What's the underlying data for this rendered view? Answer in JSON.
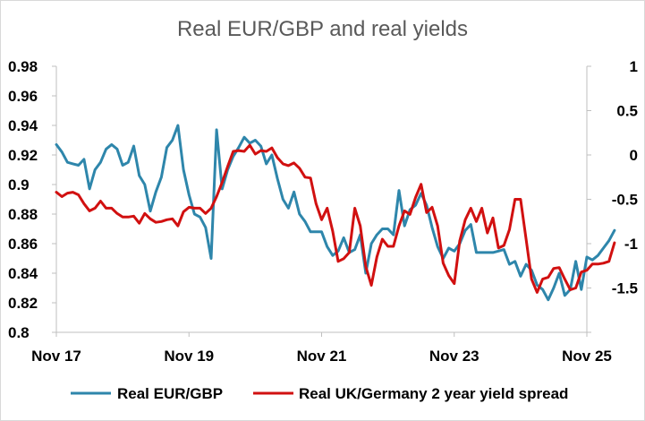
{
  "chart_data": {
    "type": "line",
    "title": "Real EUR/GBP and real yields",
    "grid": false,
    "legend_position": "bottom",
    "x_tick_labels": [
      "Nov 17",
      "Nov 19",
      "Nov 21",
      "Nov 23",
      "Nov 25"
    ],
    "x_range": [
      "2017-11",
      "2025-11"
    ],
    "y_left": {
      "range": [
        0.8,
        0.98
      ],
      "ticks": [
        0.8,
        0.82,
        0.84,
        0.86,
        0.88,
        0.9,
        0.92,
        0.94,
        0.96,
        0.98
      ],
      "tick_labels": [
        "0.8",
        "0.82",
        "0.84",
        "0.86",
        "0.88",
        "0.9",
        "0.92",
        "0.94",
        "0.96",
        "0.98"
      ]
    },
    "y_right": {
      "range": [
        -2,
        1
      ],
      "ticks": [
        -2,
        -1.5,
        -1,
        -0.5,
        0,
        0.5,
        1
      ],
      "tick_labels": [
        "",
        "-1.5",
        "-1",
        "-0.5",
        "0",
        "0.5",
        "1"
      ]
    },
    "series": [
      {
        "name": "Real EUR/GBP",
        "axis": "left",
        "color": "#2e86ab",
        "points": [
          [
            "2017-11",
            0.927
          ],
          [
            "2017-12",
            0.922
          ],
          [
            "2018-01",
            0.915
          ],
          [
            "2018-02",
            0.914
          ],
          [
            "2018-03",
            0.913
          ],
          [
            "2018-04",
            0.917
          ],
          [
            "2018-05",
            0.897
          ],
          [
            "2018-06",
            0.91
          ],
          [
            "2018-07",
            0.915
          ],
          [
            "2018-08",
            0.924
          ],
          [
            "2018-09",
            0.927
          ],
          [
            "2018-10",
            0.924
          ],
          [
            "2018-11",
            0.913
          ],
          [
            "2018-12",
            0.915
          ],
          [
            "2019-01",
            0.926
          ],
          [
            "2019-02",
            0.906
          ],
          [
            "2019-03",
            0.9
          ],
          [
            "2019-04",
            0.882
          ],
          [
            "2019-05",
            0.895
          ],
          [
            "2019-06",
            0.905
          ],
          [
            "2019-07",
            0.925
          ],
          [
            "2019-08",
            0.93
          ],
          [
            "2019-09",
            0.94
          ],
          [
            "2019-10",
            0.91
          ],
          [
            "2019-11",
            0.893
          ],
          [
            "2019-12",
            0.88
          ],
          [
            "2020-01",
            0.878
          ],
          [
            "2020-02",
            0.871
          ],
          [
            "2020-03",
            0.85
          ],
          [
            "2020-04",
            0.937
          ],
          [
            "2020-05",
            0.897
          ],
          [
            "2020-06",
            0.91
          ],
          [
            "2020-07",
            0.919
          ],
          [
            "2020-08",
            0.925
          ],
          [
            "2020-09",
            0.932
          ],
          [
            "2020-10",
            0.928
          ],
          [
            "2020-11",
            0.93
          ],
          [
            "2020-12",
            0.926
          ],
          [
            "2021-01",
            0.914
          ],
          [
            "2021-02",
            0.92
          ],
          [
            "2021-03",
            0.904
          ],
          [
            "2021-04",
            0.89
          ],
          [
            "2021-05",
            0.884
          ],
          [
            "2021-06",
            0.895
          ],
          [
            "2021-07",
            0.88
          ],
          [
            "2021-08",
            0.875
          ],
          [
            "2021-09",
            0.868
          ],
          [
            "2021-10",
            0.868
          ],
          [
            "2021-11",
            0.868
          ],
          [
            "2021-12",
            0.858
          ],
          [
            "2022-01",
            0.852
          ],
          [
            "2022-02",
            0.855
          ],
          [
            "2022-03",
            0.864
          ],
          [
            "2022-04",
            0.854
          ],
          [
            "2022-05",
            0.856
          ],
          [
            "2022-06",
            0.866
          ],
          [
            "2022-07",
            0.84
          ],
          [
            "2022-08",
            0.86
          ],
          [
            "2022-09",
            0.866
          ],
          [
            "2022-10",
            0.87
          ],
          [
            "2022-11",
            0.87
          ],
          [
            "2022-12",
            0.866
          ],
          [
            "2023-01",
            0.896
          ],
          [
            "2023-02",
            0.872
          ],
          [
            "2023-03",
            0.883
          ],
          [
            "2023-04",
            0.886
          ],
          [
            "2023-05",
            0.894
          ],
          [
            "2023-06",
            0.886
          ],
          [
            "2023-07",
            0.871
          ],
          [
            "2023-08",
            0.858
          ],
          [
            "2023-09",
            0.85
          ],
          [
            "2023-10",
            0.857
          ],
          [
            "2023-11",
            0.855
          ],
          [
            "2023-12",
            0.86
          ],
          [
            "2024-01",
            0.869
          ],
          [
            "2024-02",
            0.873
          ],
          [
            "2024-03",
            0.854
          ],
          [
            "2024-04",
            0.854
          ],
          [
            "2024-05",
            0.854
          ],
          [
            "2024-06",
            0.854
          ],
          [
            "2024-07",
            0.855
          ],
          [
            "2024-08",
            0.856
          ],
          [
            "2024-09",
            0.846
          ],
          [
            "2024-10",
            0.848
          ],
          [
            "2024-11",
            0.838
          ],
          [
            "2024-12",
            0.846
          ],
          [
            "2025-01",
            0.842
          ],
          [
            "2025-02",
            0.832
          ],
          [
            "2025-03",
            0.829
          ],
          [
            "2025-04",
            0.822
          ],
          [
            "2025-05",
            0.83
          ],
          [
            "2025-06",
            0.84
          ],
          [
            "2025-07",
            0.825
          ],
          [
            "2025-08",
            0.829
          ],
          [
            "2025-09",
            0.848
          ],
          [
            "2025-10",
            0.829
          ],
          [
            "2025-11",
            0.851
          ],
          [
            "2025-12",
            0.849
          ],
          [
            "2026-01",
            0.852
          ],
          [
            "2026-02",
            0.857
          ],
          [
            "2026-03",
            0.862
          ],
          [
            "2026-04",
            0.869
          ]
        ]
      },
      {
        "name": "Real UK/Germany 2 year yield spread",
        "axis": "right",
        "color": "#d11010",
        "points": [
          [
            "2017-11",
            -0.42
          ],
          [
            "2017-12",
            -0.47
          ],
          [
            "2018-01",
            -0.43
          ],
          [
            "2018-02",
            -0.42
          ],
          [
            "2018-03",
            -0.45
          ],
          [
            "2018-04",
            -0.55
          ],
          [
            "2018-05",
            -0.63
          ],
          [
            "2018-06",
            -0.6
          ],
          [
            "2018-07",
            -0.52
          ],
          [
            "2018-08",
            -0.6
          ],
          [
            "2018-09",
            -0.6
          ],
          [
            "2018-10",
            -0.66
          ],
          [
            "2018-11",
            -0.7
          ],
          [
            "2018-12",
            -0.7
          ],
          [
            "2019-01",
            -0.69
          ],
          [
            "2019-02",
            -0.77
          ],
          [
            "2019-03",
            -0.66
          ],
          [
            "2019-04",
            -0.72
          ],
          [
            "2019-05",
            -0.76
          ],
          [
            "2019-06",
            -0.75
          ],
          [
            "2019-07",
            -0.73
          ],
          [
            "2019-08",
            -0.72
          ],
          [
            "2019-09",
            -0.8
          ],
          [
            "2019-10",
            -0.64
          ],
          [
            "2019-11",
            -0.59
          ],
          [
            "2019-12",
            -0.6
          ],
          [
            "2020-01",
            -0.6
          ],
          [
            "2020-02",
            -0.66
          ],
          [
            "2020-03",
            -0.6
          ],
          [
            "2020-04",
            -0.47
          ],
          [
            "2020-05",
            -0.31
          ],
          [
            "2020-06",
            -0.13
          ],
          [
            "2020-07",
            0.04
          ],
          [
            "2020-08",
            0.05
          ],
          [
            "2020-09",
            0.04
          ],
          [
            "2020-10",
            0.11
          ],
          [
            "2020-11",
            0.01
          ],
          [
            "2020-12",
            0.05
          ],
          [
            "2021-01",
            0.04
          ],
          [
            "2021-02",
            0.08
          ],
          [
            "2021-03",
            -0.03
          ],
          [
            "2021-04",
            -0.1
          ],
          [
            "2021-05",
            -0.12
          ],
          [
            "2021-06",
            -0.09
          ],
          [
            "2021-07",
            -0.15
          ],
          [
            "2021-08",
            -0.25
          ],
          [
            "2021-09",
            -0.26
          ],
          [
            "2021-10",
            -0.55
          ],
          [
            "2021-11",
            -0.73
          ],
          [
            "2021-12",
            -0.6
          ],
          [
            "2022-01",
            -0.86
          ],
          [
            "2022-02",
            -1.2
          ],
          [
            "2022-03",
            -1.17
          ],
          [
            "2022-04",
            -1.1
          ],
          [
            "2022-05",
            -0.6
          ],
          [
            "2022-06",
            -0.8
          ],
          [
            "2022-07",
            -1.26
          ],
          [
            "2022-08",
            -1.47
          ],
          [
            "2022-09",
            -1.15
          ],
          [
            "2022-10",
            -0.95
          ],
          [
            "2022-11",
            -1.03
          ],
          [
            "2022-12",
            -1.03
          ],
          [
            "2023-01",
            -0.8
          ],
          [
            "2023-02",
            -0.63
          ],
          [
            "2023-03",
            -0.67
          ],
          [
            "2023-04",
            -0.48
          ],
          [
            "2023-05",
            -0.33
          ],
          [
            "2023-06",
            -0.65
          ],
          [
            "2023-07",
            -0.59
          ],
          [
            "2023-08",
            -0.8
          ],
          [
            "2023-09",
            -1.22
          ],
          [
            "2023-10",
            -1.36
          ],
          [
            "2023-11",
            -1.45
          ],
          [
            "2023-12",
            -0.97
          ],
          [
            "2024-01",
            -0.73
          ],
          [
            "2024-02",
            -0.6
          ],
          [
            "2024-03",
            -0.75
          ],
          [
            "2024-04",
            -0.6
          ],
          [
            "2024-05",
            -0.88
          ],
          [
            "2024-06",
            -0.71
          ],
          [
            "2024-07",
            -1.05
          ],
          [
            "2024-08",
            -1.02
          ],
          [
            "2024-09",
            -0.84
          ],
          [
            "2024-10",
            -0.5
          ],
          [
            "2024-11",
            -0.5
          ],
          [
            "2024-12",
            -0.95
          ],
          [
            "2025-01",
            -1.4
          ],
          [
            "2025-02",
            -1.55
          ],
          [
            "2025-03",
            -1.4
          ],
          [
            "2025-04",
            -1.38
          ],
          [
            "2025-05",
            -1.28
          ],
          [
            "2025-06",
            -1.27
          ],
          [
            "2025-07",
            -1.4
          ],
          [
            "2025-08",
            -1.52
          ],
          [
            "2025-09",
            -1.5
          ],
          [
            "2025-10",
            -1.32
          ],
          [
            "2025-11",
            -1.3
          ],
          [
            "2025-12",
            -1.23
          ],
          [
            "2026-01",
            -1.23
          ],
          [
            "2026-02",
            -1.22
          ],
          [
            "2026-03",
            -1.2
          ],
          [
            "2026-04",
            -0.99
          ]
        ]
      }
    ]
  }
}
